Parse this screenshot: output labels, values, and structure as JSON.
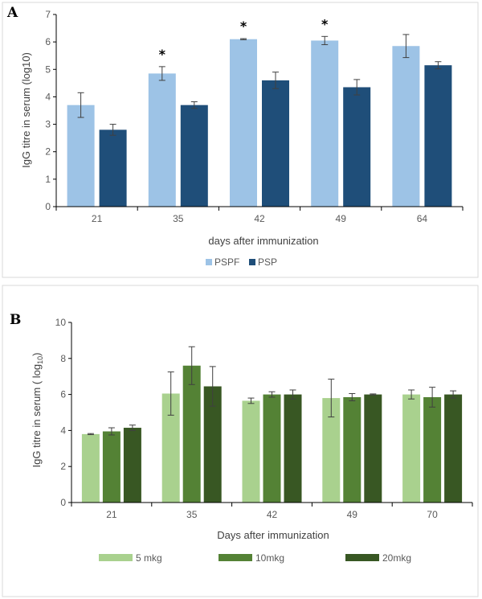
{
  "panels": [
    {
      "label": "A",
      "chart_data": {
        "type": "bar",
        "categories": [
          "21",
          "35",
          "42",
          "49",
          "64"
        ],
        "series": [
          {
            "name": "PSPF",
            "color": "#9dc3e6",
            "values": [
              3.7,
              4.85,
              6.1,
              6.05,
              5.85
            ],
            "errors": [
              0.45,
              0.25,
              0.02,
              0.15,
              0.42
            ]
          },
          {
            "name": "PSP",
            "color": "#1f4e79",
            "values": [
              2.8,
              3.7,
              4.6,
              4.35,
              5.15
            ],
            "errors": [
              0.2,
              0.12,
              0.3,
              0.28,
              0.13
            ]
          }
        ],
        "significance": [
          "",
          "*",
          "*",
          "*",
          ""
        ],
        "xlabel": "days after immunization",
        "ylabel": "IgG titre in serum (log10)",
        "ylim": [
          0,
          7
        ],
        "yticks": [
          "0",
          "1",
          "2",
          "3",
          "4",
          "5",
          "6",
          "7"
        ],
        "legend": "bottom"
      }
    },
    {
      "label": "B",
      "chart_data": {
        "type": "bar",
        "categories": [
          "21",
          "35",
          "42",
          "49",
          "70"
        ],
        "series": [
          {
            "name": "5 mkg",
            "color": "#a9d18e",
            "values": [
              3.8,
              6.05,
              5.65,
              5.8,
              6.0
            ],
            "errors": [
              0.03,
              1.2,
              0.15,
              1.05,
              0.25
            ]
          },
          {
            "name": "10mkg",
            "color": "#548235",
            "values": [
              3.95,
              7.6,
              6.0,
              5.85,
              5.85
            ],
            "errors": [
              0.2,
              1.05,
              0.15,
              0.2,
              0.55
            ]
          },
          {
            "name": "20mkg",
            "color": "#385723",
            "values": [
              4.15,
              6.45,
              6.0,
              6.0,
              6.0
            ],
            "errors": [
              0.15,
              1.1,
              0.25,
              0.03,
              0.2
            ]
          }
        ],
        "xlabel": "Days after immunization",
        "ylabel_main": "IgG titre in serum ( log",
        "ylabel_sub": "10",
        "ylabel_end": ")",
        "ylim": [
          0,
          10
        ],
        "yticks": [
          "0",
          "2",
          "4",
          "6",
          "8",
          "10"
        ],
        "legend": "bottom"
      }
    }
  ]
}
